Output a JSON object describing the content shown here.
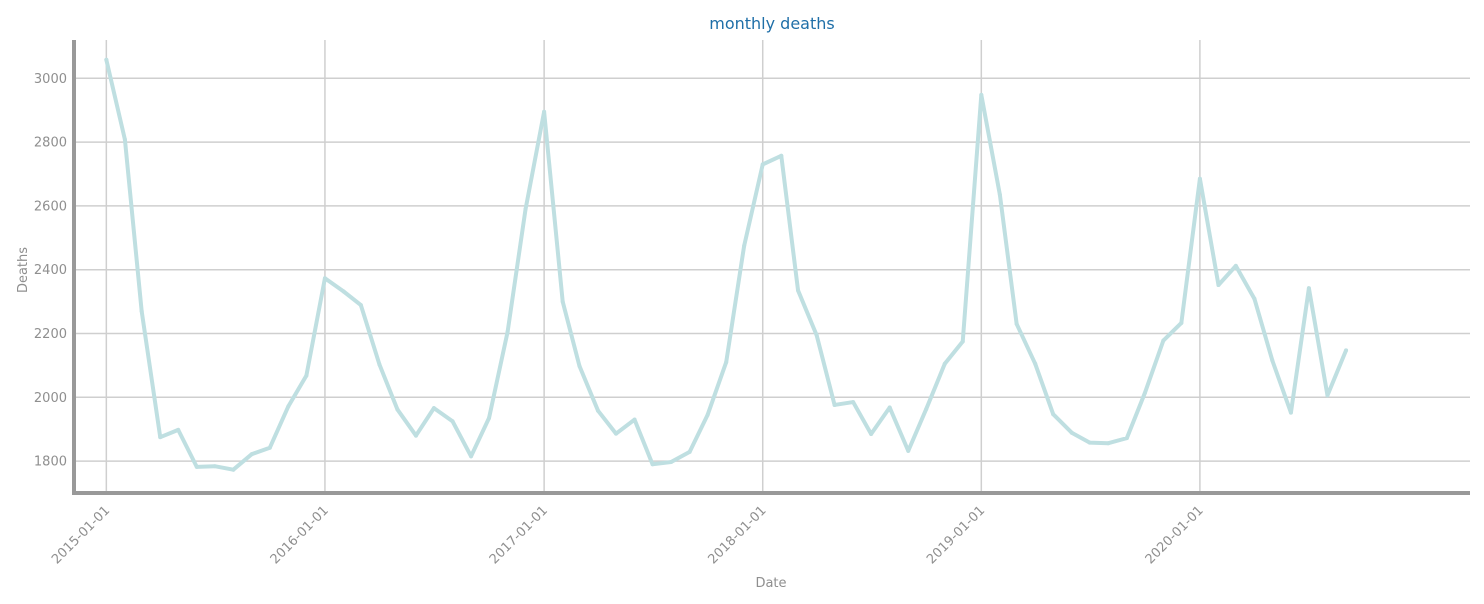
{
  "chart_data": {
    "type": "line",
    "title": "monthly deaths",
    "xlabel": "Date",
    "ylabel": "Deaths",
    "ylim": [
      1700,
      3120
    ],
    "xlim": [
      "2014-11-08",
      "2021-03-27"
    ],
    "yticks": [
      1800,
      2000,
      2200,
      2400,
      2600,
      2800,
      3000
    ],
    "xticks": [
      "2015-01-01",
      "2016-01-01",
      "2017-01-01",
      "2018-01-01",
      "2019-01-01",
      "2020-01-01"
    ],
    "grid": true,
    "colors": {
      "line": "#bfdfe1",
      "grid": "#cfcfcf",
      "spine": "#999999",
      "title": "#1f6fa8",
      "text": "#8f8f8f"
    },
    "x": [
      "2015-01-01",
      "2015-02-01",
      "2015-03-01",
      "2015-04-01",
      "2015-05-01",
      "2015-06-01",
      "2015-07-01",
      "2015-08-01",
      "2015-09-01",
      "2015-10-01",
      "2015-11-01",
      "2015-12-01",
      "2016-01-01",
      "2016-02-01",
      "2016-03-01",
      "2016-04-01",
      "2016-05-01",
      "2016-06-01",
      "2016-07-01",
      "2016-08-01",
      "2016-09-01",
      "2016-10-01",
      "2016-11-01",
      "2016-12-01",
      "2017-01-01",
      "2017-02-01",
      "2017-03-01",
      "2017-04-01",
      "2017-05-01",
      "2017-06-01",
      "2017-07-01",
      "2017-08-01",
      "2017-09-01",
      "2017-10-01",
      "2017-11-01",
      "2017-12-01",
      "2018-01-01",
      "2018-02-01",
      "2018-03-01",
      "2018-04-01",
      "2018-05-01",
      "2018-06-01",
      "2018-07-01",
      "2018-08-01",
      "2018-09-01",
      "2018-10-01",
      "2018-11-01",
      "2018-12-01",
      "2019-01-01",
      "2019-02-01",
      "2019-03-01",
      "2019-04-01",
      "2019-05-01",
      "2019-06-01",
      "2019-07-01",
      "2019-08-01",
      "2019-09-01",
      "2019-10-01",
      "2019-11-01",
      "2019-12-01",
      "2020-01-01",
      "2020-02-01",
      "2020-03-01",
      "2020-04-01",
      "2020-05-01",
      "2020-06-01",
      "2020-07-01",
      "2020-08-01",
      "2020-09-01"
    ],
    "series": [
      {
        "values": [
          3058,
          2808,
          2270,
          1875,
          1898,
          1782,
          1784,
          1773,
          1822,
          1842,
          1972,
          2068,
          2373,
          2332,
          2289,
          2103,
          1962,
          1880,
          1966,
          1925,
          1815,
          1935,
          2205,
          2590,
          2895,
          2300,
          2098,
          1958,
          1886,
          1930,
          1790,
          1797,
          1829,
          1945,
          2110,
          2475,
          2730,
          2757,
          2335,
          2195,
          1976,
          1985,
          1885,
          1968,
          1832,
          1963,
          2105,
          2175,
          2948,
          2635,
          2230,
          2105,
          1947,
          1889,
          1858,
          1856,
          1872,
          2013,
          2178,
          2233,
          2685,
          2352,
          2412,
          2309,
          2115,
          1952,
          2342,
          2006,
          2147
        ]
      }
    ]
  }
}
